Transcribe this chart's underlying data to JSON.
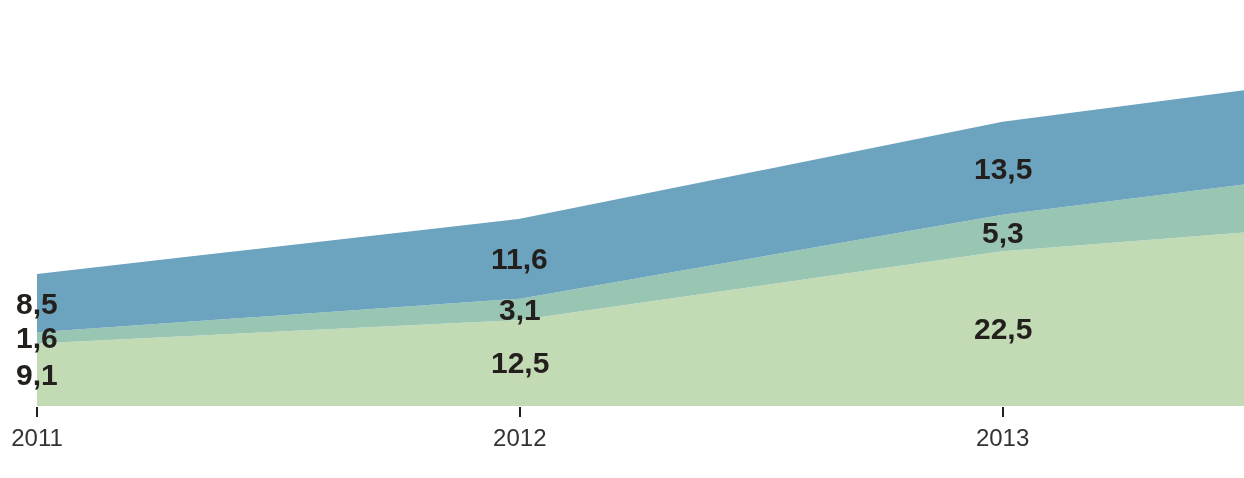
{
  "chart_data": {
    "type": "area",
    "stacked": true,
    "x": [
      2011,
      2012,
      2013,
      2013.5
    ],
    "xlim": [
      2011,
      2013.5
    ],
    "xticks": [
      2011,
      2012,
      2013
    ],
    "ylim": [
      0,
      59
    ],
    "tick_labels": "x",
    "series": [
      {
        "color": "#c3dbb5",
        "values": [
          9.1,
          12.5,
          22.5,
          25.2
        ],
        "value_labels": [
          "9,1",
          "12,5",
          "22,5",
          null
        ]
      },
      {
        "color": "#98c6b2",
        "values": [
          1.6,
          3.1,
          5.3,
          7.0
        ],
        "value_labels": [
          "1,6",
          "3,1",
          "5,3",
          null
        ]
      },
      {
        "color": "#6ca3be",
        "values": [
          8.5,
          11.6,
          13.5,
          13.7
        ],
        "value_labels": [
          "8,5",
          "11,6",
          "13,5",
          null
        ]
      }
    ]
  }
}
